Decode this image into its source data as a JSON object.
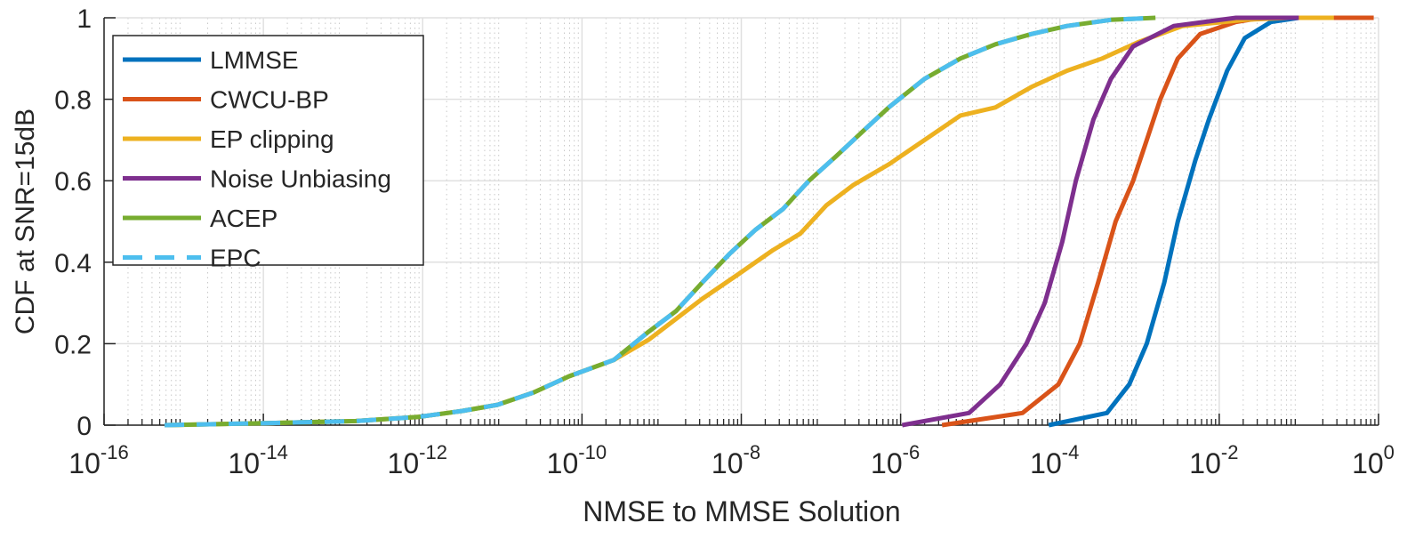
{
  "chart_data": {
    "type": "line",
    "title": "",
    "xlabel": "NMSE to MMSE Solution",
    "ylabel": "CDF at SNR=15dB",
    "xscale": "log",
    "xlim_log10": [
      -16,
      0
    ],
    "ylim": [
      0,
      1
    ],
    "grid": true,
    "legend_position": "top-left",
    "x_ticks": [
      {
        "base": "10",
        "exp": "-16"
      },
      {
        "base": "10",
        "exp": "-14"
      },
      {
        "base": "10",
        "exp": "-12"
      },
      {
        "base": "10",
        "exp": "-10"
      },
      {
        "base": "10",
        "exp": "-8"
      },
      {
        "base": "10",
        "exp": "-6"
      },
      {
        "base": "10",
        "exp": "-4"
      },
      {
        "base": "10",
        "exp": "-2"
      },
      {
        "base": "10",
        "exp": "0"
      }
    ],
    "y_ticks": [
      "0",
      "0.2",
      "0.4",
      "0.6",
      "0.8",
      "1"
    ],
    "series": [
      {
        "name": "LMMSE",
        "color": "#0072BD",
        "dash": false,
        "log10x": [
          -4.14,
          -3.41,
          -3.13,
          -2.91,
          -2.69,
          -2.52,
          -2.3,
          -2.13,
          -1.9,
          -1.68,
          -1.35,
          -1.0,
          -0.23
        ],
        "y": [
          0,
          0.03,
          0.1,
          0.2,
          0.35,
          0.5,
          0.65,
          0.75,
          0.87,
          0.95,
          0.99,
          1,
          1
        ]
      },
      {
        "name": "CWCU-BP",
        "color": "#D95319",
        "dash": false,
        "log10x": [
          -5.48,
          -4.47,
          -4.02,
          -3.75,
          -3.52,
          -3.3,
          -3.08,
          -2.91,
          -2.74,
          -2.52,
          -2.24,
          -1.79,
          -1.46,
          -0.06
        ],
        "y": [
          0,
          0.03,
          0.1,
          0.2,
          0.35,
          0.5,
          0.6,
          0.7,
          0.8,
          0.9,
          0.96,
          0.99,
          1,
          1
        ]
      },
      {
        "name": "EP clipping",
        "color": "#EDB120",
        "dash": false,
        "log10x": [
          -15.24,
          -13.96,
          -12.84,
          -12.06,
          -11.5,
          -11.06,
          -10.61,
          -10.16,
          -9.6,
          -9.16,
          -8.49,
          -8.04,
          -7.6,
          -7.26,
          -6.93,
          -6.59,
          -6.15,
          -5.7,
          -5.25,
          -4.81,
          -4.36,
          -3.91,
          -3.47,
          -3.02,
          -2.46,
          -1.68,
          -1.12,
          -0.56
        ],
        "y": [
          0,
          0.005,
          0.01,
          0.02,
          0.035,
          0.05,
          0.08,
          0.12,
          0.16,
          0.21,
          0.31,
          0.37,
          0.43,
          0.47,
          0.54,
          0.59,
          0.64,
          0.7,
          0.76,
          0.78,
          0.83,
          0.87,
          0.9,
          0.94,
          0.98,
          0.995,
          1,
          1
        ]
      },
      {
        "name": "Noise Unbiasing",
        "color": "#7E2F8E",
        "dash": false,
        "log10x": [
          -5.98,
          -5.14,
          -4.75,
          -4.42,
          -4.19,
          -3.97,
          -3.8,
          -3.58,
          -3.36,
          -3.08,
          -2.57,
          -1.79,
          -1.0
        ],
        "y": [
          0,
          0.03,
          0.1,
          0.2,
          0.3,
          0.45,
          0.6,
          0.75,
          0.85,
          0.93,
          0.98,
          1,
          1
        ]
      },
      {
        "name": "ACEP",
        "color": "#77AC30",
        "dash": false,
        "log10x": [
          -15.24,
          -13.96,
          -12.84,
          -12.06,
          -11.5,
          -11.06,
          -10.61,
          -10.16,
          -9.6,
          -9.16,
          -8.82,
          -8.49,
          -8.15,
          -7.82,
          -7.48,
          -7.15,
          -6.81,
          -6.48,
          -6.15,
          -5.7,
          -5.25,
          -4.81,
          -4.36,
          -3.91,
          -3.36,
          -2.8
        ],
        "y": [
          0,
          0.005,
          0.01,
          0.02,
          0.035,
          0.05,
          0.08,
          0.12,
          0.16,
          0.23,
          0.28,
          0.35,
          0.42,
          0.48,
          0.53,
          0.6,
          0.66,
          0.72,
          0.78,
          0.85,
          0.9,
          0.935,
          0.96,
          0.98,
          0.995,
          1
        ]
      },
      {
        "name": "EPC",
        "color": "#4DBEEE",
        "dash": true,
        "log10x": [
          -15.24,
          -13.96,
          -12.84,
          -12.06,
          -11.5,
          -11.06,
          -10.61,
          -10.16,
          -9.6,
          -9.16,
          -8.82,
          -8.49,
          -8.15,
          -7.82,
          -7.48,
          -7.15,
          -6.81,
          -6.48,
          -6.15,
          -5.7,
          -5.25,
          -4.81,
          -4.36,
          -3.91,
          -3.36,
          -2.8
        ],
        "y": [
          0,
          0.005,
          0.01,
          0.02,
          0.035,
          0.05,
          0.08,
          0.12,
          0.16,
          0.23,
          0.28,
          0.35,
          0.42,
          0.48,
          0.53,
          0.6,
          0.66,
          0.72,
          0.78,
          0.85,
          0.9,
          0.935,
          0.96,
          0.98,
          0.995,
          1
        ]
      }
    ]
  }
}
